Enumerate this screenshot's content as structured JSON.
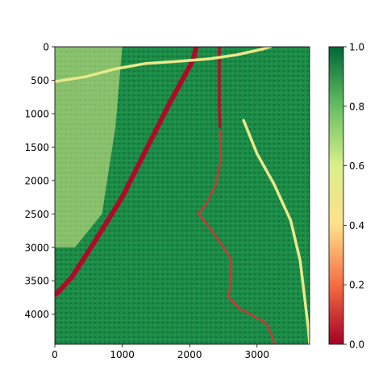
{
  "chart_data": {
    "type": "heatmap",
    "title": "",
    "xlabel": "",
    "ylabel": "",
    "xlim": [
      0,
      3780
    ],
    "ylim": [
      4450,
      0
    ],
    "x_ticks": [
      0,
      1000,
      2000,
      3000
    ],
    "y_ticks": [
      0,
      500,
      1000,
      1500,
      2000,
      2500,
      3000,
      3500,
      4000
    ],
    "grid": false,
    "colormap": "RdYlGn",
    "colormap_stops": [
      "#a50026",
      "#f46d43",
      "#fee08b",
      "#d9ef8b",
      "#66bd63",
      "#006837"
    ],
    "colorbar": {
      "range": [
        0.0,
        1.0
      ],
      "ticks": [
        "0.0",
        "0.2",
        "0.4",
        "0.6",
        "0.8",
        "1.0"
      ],
      "placement": "right"
    },
    "features": [
      {
        "name": "highway",
        "value": 0.02,
        "points": [
          [
            20,
            3700
          ],
          [
            250,
            3450
          ],
          [
            600,
            2900
          ],
          [
            1000,
            2250
          ],
          [
            1400,
            1450
          ],
          [
            1700,
            850
          ],
          [
            2050,
            200
          ],
          [
            2100,
            0
          ]
        ]
      },
      {
        "name": "vertical-road",
        "value": 0.03,
        "points": [
          [
            2440,
            0
          ],
          [
            2440,
            900
          ],
          [
            2450,
            1200
          ]
        ]
      },
      {
        "name": "river",
        "value": 0.1,
        "points": [
          [
            2450,
            1250
          ],
          [
            2460,
            1700
          ],
          [
            2390,
            2050
          ],
          [
            2250,
            2350
          ],
          [
            2130,
            2500
          ],
          [
            2230,
            2620
          ],
          [
            2400,
            2850
          ],
          [
            2600,
            3150
          ],
          [
            2610,
            3450
          ],
          [
            2580,
            3750
          ],
          [
            2740,
            3920
          ],
          [
            2900,
            4000
          ],
          [
            3150,
            4150
          ],
          [
            3230,
            4350
          ],
          [
            3260,
            4450
          ]
        ]
      },
      {
        "name": "light-road-upper",
        "value": 0.5,
        "points": [
          [
            0,
            520
          ],
          [
            450,
            450
          ],
          [
            900,
            330
          ],
          [
            1350,
            250
          ],
          [
            1800,
            220
          ],
          [
            2300,
            180
          ],
          [
            2700,
            120
          ],
          [
            3100,
            30
          ],
          [
            3200,
            0
          ]
        ]
      },
      {
        "name": "light-road-right",
        "value": 0.5,
        "points": [
          [
            2800,
            1100
          ],
          [
            3000,
            1600
          ],
          [
            3250,
            2050
          ],
          [
            3500,
            2600
          ],
          [
            3640,
            3200
          ],
          [
            3700,
            3700
          ],
          [
            3760,
            4200
          ],
          [
            3780,
            4450
          ]
        ]
      },
      {
        "name": "urban-area",
        "value": 0.55,
        "points": [
          [
            0,
            0
          ],
          [
            1000,
            0
          ],
          [
            900,
            1200
          ],
          [
            700,
            2500
          ],
          [
            300,
            3000
          ],
          [
            0,
            3000
          ]
        ]
      }
    ],
    "base_value": 0.88
  }
}
